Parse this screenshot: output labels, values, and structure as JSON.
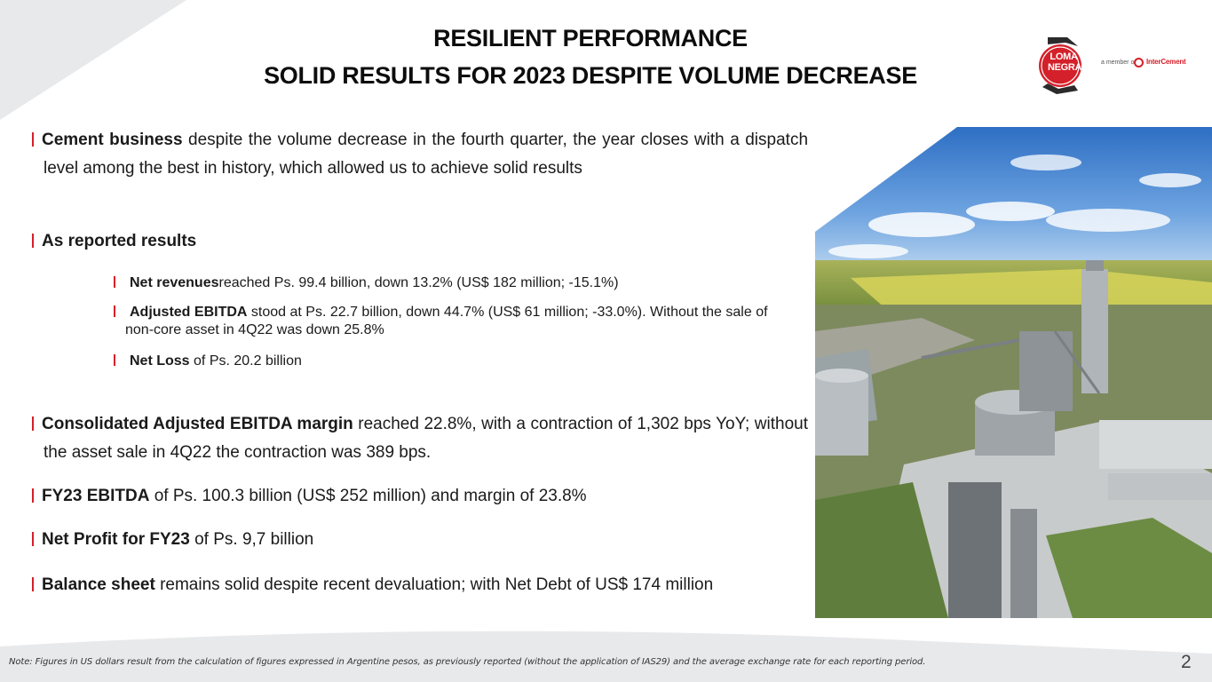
{
  "title_line1": "RESILIENT PERFORMANCE",
  "title_line2": "SOLID RESULTS FOR 2023 DESPITE VOLUME DECREASE",
  "logo": {
    "brand_line1": "LOMA",
    "brand_line2": "NEGRA",
    "member_text": "a member of",
    "parent_name": "InterCement",
    "accent_color": "#d4202a"
  },
  "bullets": [
    {
      "bold": "Cement business",
      "text": " despite the volume decrease in the fourth quarter, the year closes with a dispatch level among the best in history, which allowed us to achieve solid results"
    },
    {
      "bold": "As reported results",
      "text": ""
    },
    {
      "bold": "Consolidated Adjusted EBITDA margin",
      "text": "   reached 22.8%, with a contraction of 1,302 bps YoY; without the asset sale in 4Q22 the contraction was 389 bps."
    },
    {
      "bold": "FY23 EBITDA",
      "text": "  of Ps. 100.3 billion (US$ 252 million) and margin of 23.8%"
    },
    {
      "bold": "Net Profit for FY23",
      "text": " of Ps. 9,7 billion"
    },
    {
      "bold": "Balance sheet",
      "text": " remains solid despite recent devaluation;  with Net Debt of US$ 174 million"
    }
  ],
  "sub_bullets": [
    {
      "bold": "Net revenues",
      "text": "reached Ps. 99.4 billion, down 13.2% (US$ 182 million; -15.1%)"
    },
    {
      "bold": "Adjusted EBITDA",
      "text": " stood at Ps. 22.7 billion, down 44.7% (US$ 61 million; -33.0%). Without the sale of non-core asset in 4Q22 was down 25.8%"
    },
    {
      "bold": "Net Loss",
      "text": " of Ps. 20.2 billion"
    }
  ],
  "photo_icon": "cement-plant-aerial-photo",
  "note": "Note: Figures in US dollars result from the calculation of figures expressed in Argentine pesos, as previously reported (without the application of IAS29) and the average exchange rate for each reporting period.",
  "page_number": "2"
}
